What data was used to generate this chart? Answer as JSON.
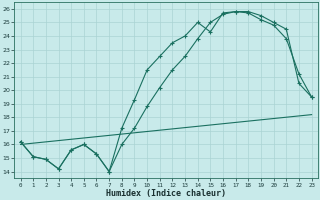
{
  "xlabel": "Humidex (Indice chaleur)",
  "bg_color": "#c8eaea",
  "grid_color": "#aad4d4",
  "line_color": "#1a7060",
  "xlim": [
    -0.5,
    23.5
  ],
  "ylim": [
    13.5,
    26.5
  ],
  "xticks": [
    0,
    1,
    2,
    3,
    4,
    5,
    6,
    7,
    8,
    9,
    10,
    11,
    12,
    13,
    14,
    15,
    16,
    17,
    18,
    19,
    20,
    21,
    22,
    23
  ],
  "yticks": [
    14,
    15,
    16,
    17,
    18,
    19,
    20,
    21,
    22,
    23,
    24,
    25,
    26
  ],
  "line1_x": [
    0,
    1,
    2,
    3,
    4,
    5,
    6,
    7,
    8,
    9,
    10,
    11,
    12,
    13,
    14,
    15,
    16,
    17,
    18,
    19,
    20,
    21,
    22,
    23
  ],
  "line1_y": [
    16.2,
    15.1,
    14.9,
    14.2,
    15.6,
    16.0,
    15.3,
    14.0,
    17.2,
    19.3,
    21.5,
    22.5,
    23.5,
    24.0,
    25.0,
    24.3,
    25.7,
    25.8,
    25.7,
    25.2,
    24.8,
    23.8,
    21.2,
    19.5
  ],
  "line2_x": [
    0,
    1,
    2,
    3,
    4,
    5,
    6,
    7,
    8,
    9,
    10,
    11,
    12,
    13,
    14,
    15,
    16,
    17,
    18,
    19,
    20,
    21,
    22,
    23
  ],
  "line2_y": [
    16.2,
    15.1,
    14.9,
    14.2,
    15.6,
    16.0,
    15.3,
    14.0,
    16.0,
    17.2,
    18.8,
    20.2,
    21.5,
    22.5,
    23.8,
    25.0,
    25.6,
    25.8,
    25.8,
    25.5,
    25.0,
    24.5,
    20.5,
    19.5
  ],
  "line3_x": [
    0,
    23
  ],
  "line3_y": [
    16.0,
    18.2
  ]
}
